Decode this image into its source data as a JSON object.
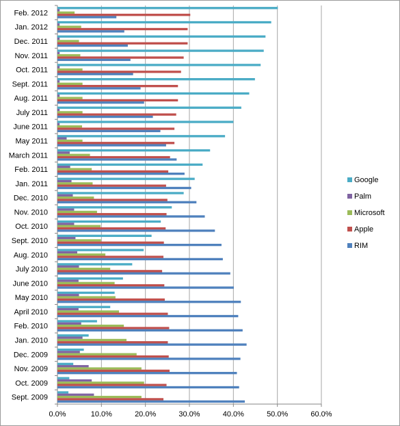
{
  "chart_data": {
    "type": "bar",
    "orientation": "horizontal",
    "categories": [
      "Feb. 2012",
      "Jan. 2012",
      "Dec. 2011",
      "Nov. 2011",
      "Oct. 2011",
      "Sept. 2011",
      "Aug. 2011",
      "July 2011",
      "June 2011",
      "May 2011",
      "March 2011",
      "Feb. 2011",
      "Jan. 2011",
      "Dec. 2010",
      "Nov. 2010",
      "Oct. 2010",
      "Sept. 2010",
      "Aug. 2010",
      "July 2010",
      "June 2010",
      "May 2010",
      "April 2010",
      "Feb. 2010",
      "Jan. 2010",
      "Dec. 2009",
      "Nov. 2009",
      "Oct. 2009",
      "Sept. 2009"
    ],
    "series": [
      {
        "name": "Google",
        "color": "#4bacc6",
        "values": [
          50.1,
          48.6,
          47.3,
          46.9,
          46.2,
          44.9,
          43.6,
          41.8,
          40.0,
          38.1,
          34.7,
          33.0,
          31.2,
          28.7,
          26.0,
          23.5,
          21.4,
          19.6,
          17.0,
          14.9,
          13.0,
          12.0,
          9.0,
          7.1,
          6.0,
          3.6,
          2.7,
          2.5
        ]
      },
      {
        "name": "Palm",
        "color": "#8064a2",
        "values": [
          0.5,
          0.5,
          0.5,
          0.5,
          0.5,
          0.5,
          0.5,
          0.5,
          0.5,
          2.1,
          2.8,
          2.9,
          3.2,
          3.5,
          3.8,
          3.8,
          4.1,
          4.5,
          4.9,
          4.8,
          4.9,
          4.8,
          5.4,
          5.7,
          5.1,
          7.1,
          7.8,
          8.3
        ]
      },
      {
        "name": "Microsoft",
        "color": "#9bbb59",
        "values": [
          3.9,
          5.4,
          4.9,
          5.2,
          5.7,
          5.7,
          5.7,
          5.7,
          5.6,
          5.7,
          7.4,
          7.8,
          8.0,
          8.3,
          9.0,
          9.8,
          9.9,
          10.9,
          12.0,
          13.0,
          13.2,
          14.0,
          15.1,
          15.7,
          18.0,
          19.1,
          19.7,
          19.1
        ]
      },
      {
        "name": "Apple",
        "color": "#c0504d",
        "values": [
          30.2,
          29.6,
          29.6,
          28.7,
          28.1,
          27.4,
          27.4,
          27.0,
          26.6,
          26.6,
          25.6,
          25.2,
          24.7,
          25.0,
          24.8,
          24.6,
          24.2,
          24.1,
          23.8,
          24.3,
          24.4,
          25.1,
          25.4,
          25.1,
          25.3,
          25.5,
          24.8,
          24.1
        ]
      },
      {
        "name": "RIM",
        "color": "#4f81bd",
        "values": [
          13.4,
          15.2,
          16.0,
          16.6,
          17.2,
          18.9,
          19.7,
          21.7,
          23.4,
          24.7,
          27.1,
          28.9,
          30.4,
          31.6,
          33.5,
          35.8,
          37.3,
          37.6,
          39.3,
          40.1,
          41.7,
          41.1,
          42.1,
          43.0,
          41.6,
          40.8,
          41.3,
          42.6
        ]
      }
    ],
    "legend_order": [
      "Google",
      "Palm",
      "Microsoft",
      "Apple",
      "RIM"
    ],
    "x_ticks": [
      "0.0%",
      "10.0%",
      "20.0%",
      "30.0%",
      "40.0%",
      "50.0%",
      "60.0%"
    ],
    "xlim": [
      0,
      60
    ],
    "grid": true,
    "legend_position": "right",
    "title": "",
    "xlabel": "",
    "ylabel": ""
  }
}
